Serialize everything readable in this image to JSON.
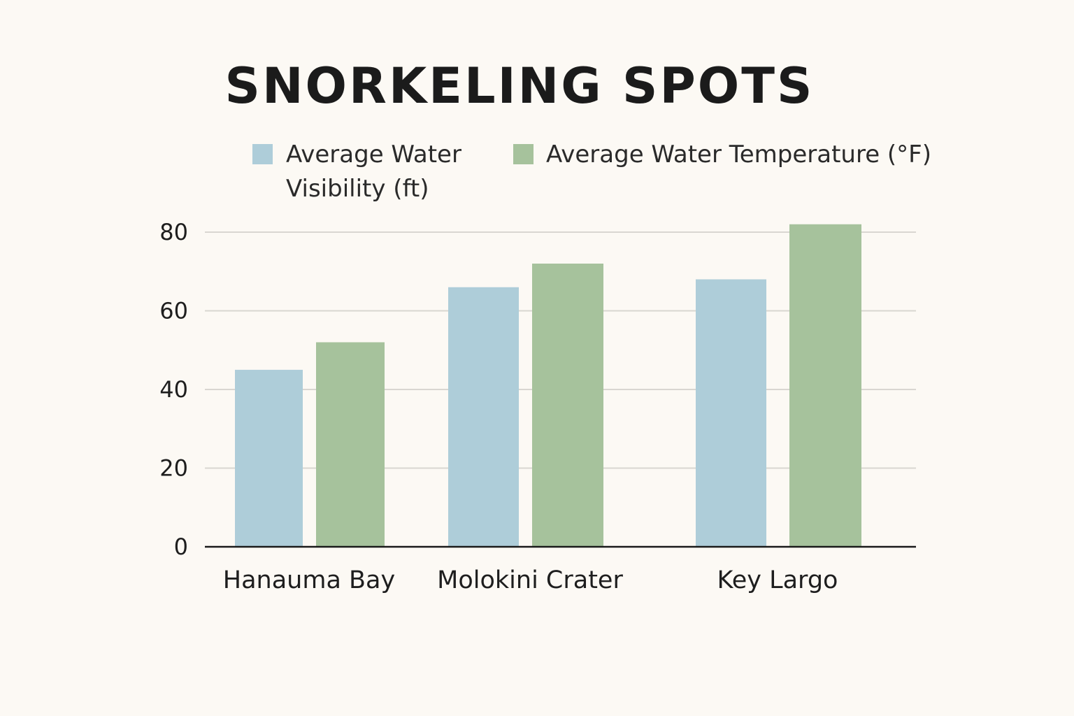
{
  "chart_data": {
    "type": "bar",
    "title": "SNORKELING SPOTS",
    "categories": [
      "Hanauma Bay",
      "Molokini Crater",
      "Key Largo"
    ],
    "series": [
      {
        "name_lines": [
          "Average Water",
          "Visibility (ft)"
        ],
        "color": "#aecdd9",
        "values": [
          45,
          66,
          68
        ]
      },
      {
        "name_lines": [
          "Average Water Temperature (°F)"
        ],
        "color": "#a6c29c",
        "values": [
          52,
          72,
          82
        ]
      }
    ],
    "yticks": [
      "0",
      "20",
      "40",
      "60",
      "80"
    ],
    "ylim": [
      0,
      80
    ],
    "grid": true,
    "legend_position": "top"
  }
}
